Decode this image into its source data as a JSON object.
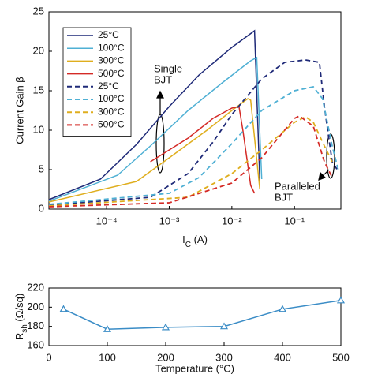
{
  "chart_data": [
    {
      "type": "line",
      "y_label": "Current Gain β",
      "x_label": {
        "main": "I",
        "sub": "C",
        "rest": " (A)"
      },
      "log_x": true,
      "xlim": [
        1.2e-05,
        0.55
      ],
      "xticks": [
        {
          "value": 0.0001,
          "label": "10⁻⁴"
        },
        {
          "value": 0.001,
          "label": "10⁻³"
        },
        {
          "value": 0.01,
          "label": "10⁻²"
        },
        {
          "value": 0.1,
          "label": "10⁻¹"
        }
      ],
      "ylim": [
        0,
        25
      ],
      "yticks": [
        0,
        5,
        10,
        15,
        20,
        25
      ],
      "legend": "upper left",
      "annotations": [
        [
          "Single",
          "BJT"
        ],
        [
          "Paralleled",
          "BJT"
        ]
      ],
      "series": [
        {
          "name": "25°C",
          "color": "#1f2a78",
          "dashed": false,
          "x": [
            1.2e-05,
            8e-05,
            0.0003,
            0.001,
            0.003,
            0.01,
            0.023,
            0.028
          ],
          "values": [
            1.2,
            3.8,
            8.2,
            13,
            17,
            20.5,
            22.6,
            3.5
          ]
        },
        {
          "name": "100°C",
          "color": "#4fb0d4",
          "dashed": false,
          "x": [
            1.2e-05,
            0.00015,
            0.0005,
            0.002,
            0.007,
            0.02,
            0.025,
            0.03
          ],
          "values": [
            1,
            4.3,
            8,
            12.5,
            16,
            18.8,
            19.2,
            3.8
          ]
        },
        {
          "name": "300°C",
          "color": "#dfae1e",
          "dashed": false,
          "x": [
            1.2e-05,
            0.0003,
            0.001,
            0.004,
            0.01,
            0.018,
            0.02,
            0.028
          ],
          "values": [
            0.9,
            3.5,
            6.5,
            10,
            12.5,
            14,
            13.8,
            2.5
          ]
        },
        {
          "name": "500°C",
          "color": "#d42a26",
          "dashed": false,
          "x": [
            0.0005,
            0.002,
            0.005,
            0.01,
            0.013,
            0.015,
            0.02,
            0.023
          ],
          "values": [
            6,
            9,
            11.5,
            12.8,
            13,
            10,
            3,
            2
          ]
        },
        {
          "name": "25°C",
          "color": "#1f2a78",
          "dashed": true,
          "x": [
            1.2e-05,
            0.0005,
            0.002,
            0.005,
            0.01,
            0.03,
            0.07,
            0.15,
            0.25,
            0.3,
            0.4,
            0.5
          ],
          "values": [
            0.5,
            1.5,
            4.5,
            8.5,
            12,
            16.5,
            18.6,
            18.9,
            18.6,
            13,
            6,
            4.8
          ]
        },
        {
          "name": "100°C",
          "color": "#4fb0d4",
          "dashed": true,
          "x": [
            1.2e-05,
            0.001,
            0.003,
            0.01,
            0.03,
            0.1,
            0.2,
            0.28,
            0.4,
            0.5
          ],
          "values": [
            0.6,
            2,
            4,
            8.3,
            12.5,
            15,
            15.5,
            14,
            8,
            5
          ]
        },
        {
          "name": "300°C",
          "color": "#dfae1e",
          "dashed": true,
          "x": [
            1.2e-05,
            0.002,
            0.01,
            0.03,
            0.1,
            0.15,
            0.2,
            0.3,
            0.4
          ],
          "values": [
            0.4,
            1.5,
            4.5,
            7.5,
            11,
            11.7,
            11,
            8,
            6
          ]
        },
        {
          "name": "500°C",
          "color": "#d42a26",
          "dashed": true,
          "x": [
            1.2e-05,
            0.001,
            0.01,
            0.03,
            0.1,
            0.12,
            0.2,
            0.3,
            0.4
          ],
          "values": [
            0.3,
            0.8,
            3.3,
            6.5,
            11.5,
            11.8,
            10.5,
            6,
            4
          ]
        }
      ]
    },
    {
      "type": "line",
      "y_label": {
        "main": "R",
        "sub": "sh",
        "rest": " (Ω/sq)"
      },
      "x_label": "Temperature (°C)",
      "xlim": [
        0,
        500
      ],
      "xticks": [
        0,
        100,
        200,
        300,
        400,
        500
      ],
      "ylim": [
        160,
        220
      ],
      "yticks": [
        160,
        180,
        200,
        220
      ],
      "series": [
        {
          "color": "#3a8cc6",
          "marker": "triangle",
          "x": [
            25,
            100,
            200,
            300,
            400,
            500
          ],
          "values": [
            198,
            177,
            179,
            180,
            198,
            207
          ]
        }
      ]
    }
  ]
}
